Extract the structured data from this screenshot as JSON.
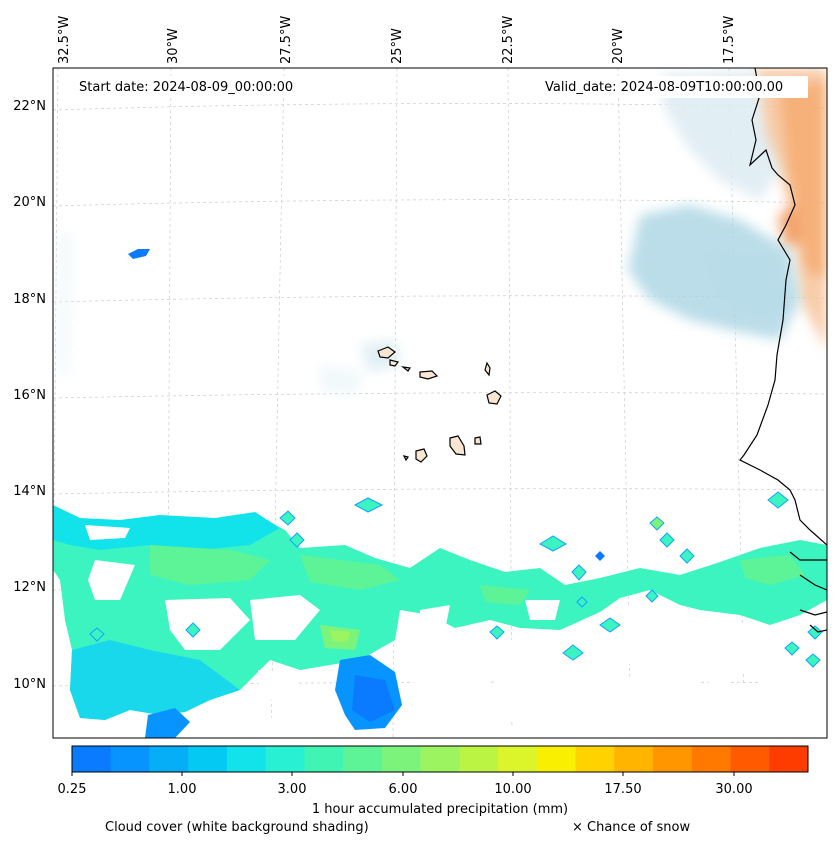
{
  "header": {
    "start_date": "Start date: 2024-08-09_00:00:00",
    "valid_date": "Valid_date: 2024-08-09T10:00:00.00"
  },
  "longitude_labels": [
    "32.5°W",
    "30°W",
    "27.5°W",
    "25°W",
    "22.5°W",
    "20°W",
    "17.5°W"
  ],
  "latitude_labels": [
    "22°N",
    "20°N",
    "18°N",
    "16°N",
    "14°N",
    "12°N",
    "10°N"
  ],
  "colorbar": {
    "colors": [
      "#0a7bff",
      "#0894ff",
      "#06aef8",
      "#04c9f2",
      "#12e3ea",
      "#28f0d2",
      "#40f4b4",
      "#5cf496",
      "#7cf47c",
      "#9cf460",
      "#bcf444",
      "#dcf42a",
      "#f8f000",
      "#ffd200",
      "#ffb400",
      "#ff9600",
      "#ff7800",
      "#ff5a00",
      "#ff3c00"
    ],
    "tick_labels": [
      "0.25",
      "1.00",
      "3.00",
      "6.00",
      "10.00",
      "17.50",
      "30.00"
    ],
    "label": "1 hour accumulated precipitation (mm)"
  },
  "legend": {
    "cloud_cover": "Cloud cover (white background shading)",
    "snow": "× Chance of snow"
  },
  "colors": {
    "cloud_shading": "#a9d4e4",
    "land_temperature": "#f4a869",
    "coastline": "#000000",
    "grid": "#cccccc"
  }
}
